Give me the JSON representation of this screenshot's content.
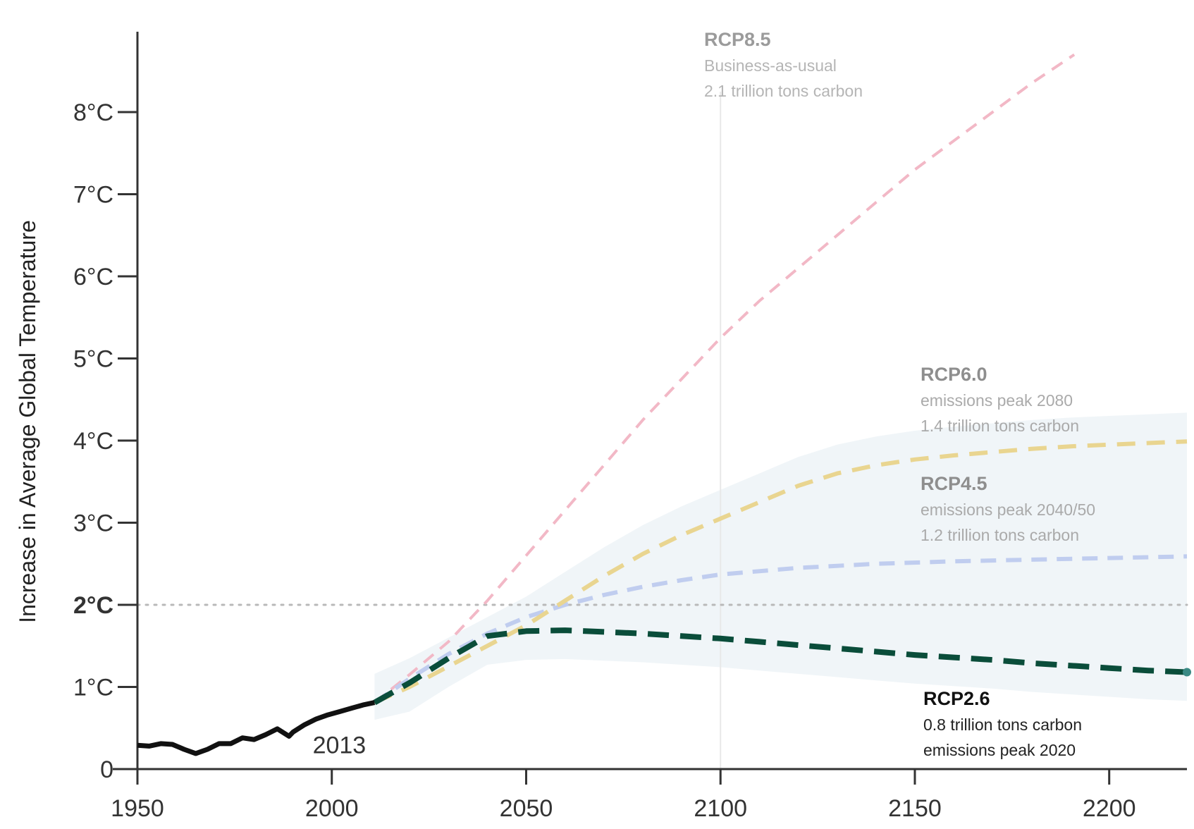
{
  "chart_data": {
    "type": "line",
    "ylabel": "Increase in Average Global Temperature",
    "xlim": [
      1950,
      2220
    ],
    "ylim": [
      0,
      8.5
    ],
    "x_ticks": [
      1950,
      2000,
      2050,
      2100,
      2150,
      2200
    ],
    "x_tick_labels": [
      "1950",
      "2000",
      "2050",
      "2100",
      "2150",
      "2200"
    ],
    "y_ticks": [
      0,
      1,
      2,
      3,
      4,
      5,
      6,
      7,
      8
    ],
    "y_tick_labels": [
      "0",
      "1°C",
      "2°C",
      "3°C",
      "4°C",
      "5°C",
      "6°C",
      "7°C",
      "8°C"
    ],
    "threshold": {
      "value": 2,
      "label": "2°C",
      "color": "#d0182d"
    },
    "historical": {
      "color": "#111111",
      "end_label": "2013",
      "x": [
        1950,
        1953,
        1956,
        1959,
        1962,
        1965,
        1968,
        1971,
        1974,
        1977,
        1980,
        1983,
        1986,
        1989,
        1990,
        1993,
        1996,
        1999,
        2002,
        2005,
        2008,
        2011
      ],
      "y": [
        0.29,
        0.28,
        0.31,
        0.3,
        0.24,
        0.19,
        0.24,
        0.31,
        0.31,
        0.38,
        0.36,
        0.42,
        0.49,
        0.4,
        0.45,
        0.54,
        0.61,
        0.66,
        0.7,
        0.74,
        0.78,
        0.81
      ]
    },
    "series": [
      {
        "name": "RCP8.5",
        "annotation": [
          "Business-as-usual",
          "2.1 trillion tons carbon"
        ],
        "color": "#f2b8c6",
        "width": 4,
        "dash": "18,12",
        "x": [
          2011,
          2020,
          2030,
          2040,
          2050,
          2060,
          2070,
          2080,
          2090,
          2100,
          2110,
          2120,
          2130,
          2140,
          2150,
          2160,
          2170,
          2180,
          2191
        ],
        "y": [
          0.81,
          1.15,
          1.55,
          2.05,
          2.6,
          3.15,
          3.7,
          4.25,
          4.75,
          5.25,
          5.7,
          6.1,
          6.5,
          6.9,
          7.3,
          7.65,
          8.0,
          8.35,
          8.7
        ]
      },
      {
        "name": "RCP6.0",
        "annotation": [
          "emissions peak 2080",
          "1.4 trillion tons carbon"
        ],
        "color": "#e9d590",
        "width": 6,
        "dash": "26,16",
        "x": [
          2011,
          2020,
          2030,
          2040,
          2050,
          2060,
          2070,
          2080,
          2090,
          2100,
          2110,
          2120,
          2130,
          2140,
          2150,
          2160,
          2170,
          2180,
          2190,
          2200,
          2210,
          2220
        ],
        "y": [
          0.81,
          1.0,
          1.25,
          1.5,
          1.75,
          2.05,
          2.35,
          2.62,
          2.85,
          3.05,
          3.25,
          3.45,
          3.6,
          3.7,
          3.77,
          3.82,
          3.86,
          3.9,
          3.93,
          3.95,
          3.97,
          3.99
        ]
      },
      {
        "name": "RCP4.5",
        "annotation": [
          "emissions peak 2040/50",
          "1.2 trillion tons carbon"
        ],
        "color": "#c0cdef",
        "width": 6,
        "dash": "22,14",
        "x": [
          2011,
          2020,
          2030,
          2040,
          2050,
          2060,
          2070,
          2080,
          2090,
          2100,
          2120,
          2140,
          2160,
          2180,
          2200,
          2220
        ],
        "y": [
          0.81,
          1.1,
          1.4,
          1.65,
          1.85,
          2.0,
          2.12,
          2.22,
          2.3,
          2.37,
          2.45,
          2.5,
          2.53,
          2.55,
          2.57,
          2.59
        ]
      },
      {
        "name": "RCP2.6",
        "annotation": [
          "0.8 trillion tons carbon",
          "emissions peak 2020"
        ],
        "color": "#0a4d3a",
        "width": 8,
        "dash": "30,16",
        "x": [
          2011,
          2020,
          2030,
          2040,
          2050,
          2060,
          2070,
          2080,
          2090,
          2100,
          2110,
          2120,
          2130,
          2140,
          2150,
          2160,
          2170,
          2180,
          2190,
          2200,
          2210,
          2220
        ],
        "y": [
          0.81,
          1.05,
          1.35,
          1.62,
          1.68,
          1.69,
          1.67,
          1.65,
          1.62,
          1.59,
          1.55,
          1.51,
          1.47,
          1.43,
          1.39,
          1.36,
          1.33,
          1.29,
          1.26,
          1.23,
          1.2,
          1.18
        ]
      }
    ]
  }
}
